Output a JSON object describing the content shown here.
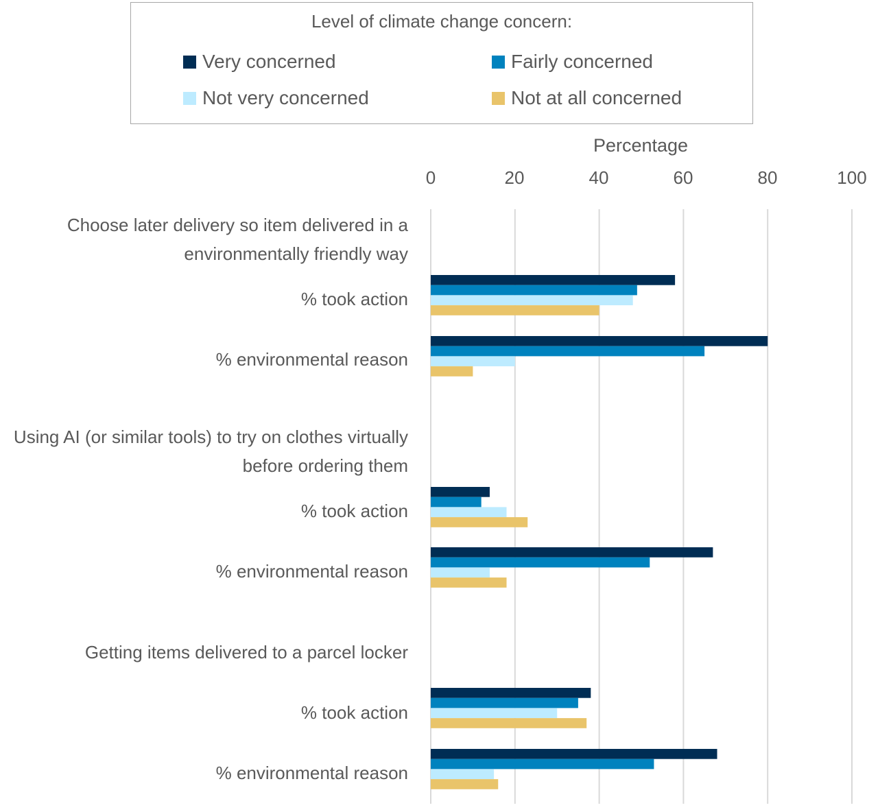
{
  "chart_data": {
    "type": "bar",
    "orientation": "horizontal",
    "title": "",
    "xlabel": "Percentage",
    "xlim": [
      0,
      100
    ],
    "xticks": [
      "0",
      "20",
      "40",
      "60",
      "80",
      "100"
    ],
    "grid": true,
    "legend": {
      "title": "Level of climate change concern:",
      "placement": "top",
      "entries": [
        "Very concerned",
        "Fairly concerned",
        "Not very concerned",
        "Not at all concerned"
      ]
    },
    "colors": [
      "#002D54",
      "#0082BE",
      "#BDEBFF",
      "#E9C46A"
    ],
    "groups": [
      {
        "label": "Choose later delivery so item delivered in a environmentally friendly way",
        "rows": [
          {
            "label": "% took action",
            "values": [
              58,
              49,
              48,
              40
            ]
          },
          {
            "label": "% environmental reason",
            "values": [
              80,
              65,
              20,
              10
            ]
          }
        ]
      },
      {
        "label": "Using AI (or similar tools) to try on clothes virtually before ordering them",
        "rows": [
          {
            "label": "% took action",
            "values": [
              14,
              12,
              18,
              23
            ]
          },
          {
            "label": "% environmental reason",
            "values": [
              67,
              52,
              14,
              18
            ]
          }
        ]
      },
      {
        "label": "Getting items delivered to a parcel locker",
        "rows": [
          {
            "label": "% took action",
            "values": [
              38,
              35,
              30,
              37
            ]
          },
          {
            "label": "% environmental reason",
            "values": [
              68,
              53,
              15,
              16
            ]
          }
        ]
      }
    ]
  }
}
